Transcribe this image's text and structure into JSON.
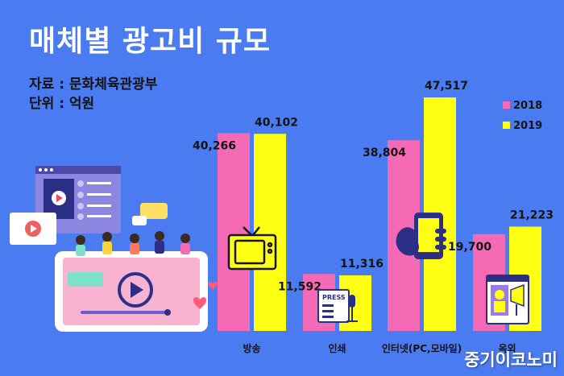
{
  "header": {
    "title": "매체별 광고비 규모",
    "source": "자료 : 문화체육관광부",
    "unit": "단위 : 억원"
  },
  "watermark": "중기이코노미",
  "colors": {
    "background": "#4a7bf0",
    "series_2018": "#f46ab4",
    "series_2019": "#ffff14"
  },
  "icons": [
    "tv-icon",
    "newspaper-icon",
    "smartphone-icon",
    "billboard-icon",
    "video-player-illustration"
  ],
  "chart_data": {
    "type": "bar",
    "title": "매체별 광고비 규모",
    "categories": [
      "방송",
      "인쇄",
      "인터넷(PC,모바일)",
      "옥외"
    ],
    "series": [
      {
        "name": "2018",
        "values": [
          40266,
          11592,
          38804,
          19700
        ]
      },
      {
        "name": "2019",
        "values": [
          40102,
          11316,
          47517,
          21223
        ]
      }
    ],
    "value_labels": [
      [
        "40,266",
        "11,592",
        "38,804",
        "19,700"
      ],
      [
        "40,102",
        "11,316",
        "47,517",
        "21,223"
      ]
    ],
    "xlabel": "",
    "ylabel": "",
    "ylim": [
      0,
      47517
    ],
    "grid": false,
    "legend_position": "top-right"
  }
}
